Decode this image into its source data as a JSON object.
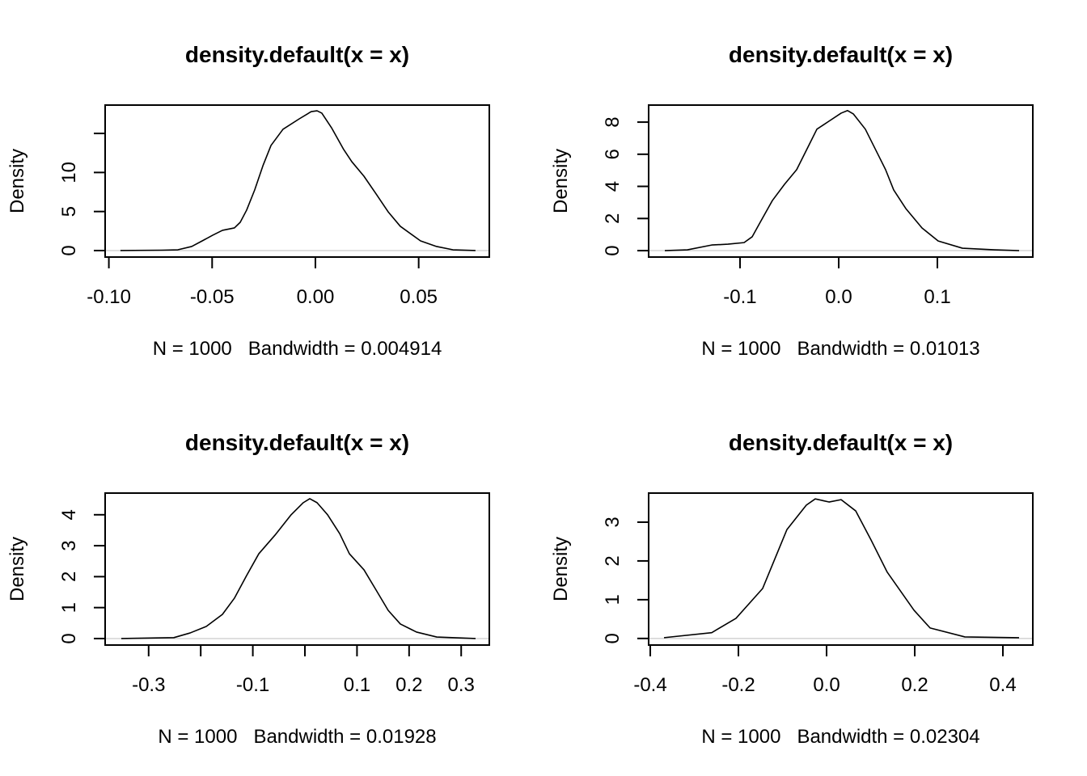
{
  "chart_data": [
    {
      "type": "line",
      "title": "density.default(x = x)",
      "xlabel": "N = 1000   Bandwidth = 0.004914",
      "ylabel": "Density",
      "xlim": [
        -0.1018,
        0.0842
      ],
      "ylim": [
        -0.83,
        18.63
      ],
      "xticks": [
        {
          "v": -0.1,
          "label": "-0.10"
        },
        {
          "v": -0.05,
          "label": "-0.05"
        },
        {
          "v": 0.0,
          "label": "0.00"
        },
        {
          "v": 0.05,
          "label": "0.05"
        }
      ],
      "yticks": [
        {
          "v": 0,
          "label": "0"
        },
        {
          "v": 5,
          "label": "5"
        },
        {
          "v": 10,
          "label": "10"
        },
        {
          "v": 15,
          "label": ""
        }
      ],
      "grid": false,
      "x": [
        -0.0944,
        -0.0744,
        -0.0666,
        -0.0599,
        -0.0548,
        -0.0497,
        -0.045,
        -0.0392,
        -0.0364,
        -0.0333,
        -0.0294,
        -0.0254,
        -0.0215,
        -0.0157,
        -0.0078,
        -0.002,
        0.0008,
        0.0031,
        0.0078,
        0.0137,
        0.0176,
        0.0235,
        0.0294,
        0.0352,
        0.0411,
        0.0509,
        0.0587,
        0.0666,
        0.0775
      ],
      "y": [
        0,
        0.05,
        0.1,
        0.52,
        1.24,
        1.97,
        2.59,
        2.9,
        3.62,
        5.18,
        7.76,
        10.87,
        13.46,
        15.53,
        16.87,
        17.8,
        17.9,
        17.6,
        15.73,
        12.94,
        11.39,
        9.52,
        7.25,
        4.97,
        3.11,
        1.24,
        0.52,
        0.1,
        0
      ]
    },
    {
      "type": "line",
      "title": "density.default(x = x)",
      "xlabel": "N = 1000   Bandwidth = 0.01013",
      "ylabel": "Density",
      "xlim": [
        -0.1926,
        0.1967
      ],
      "ylim": [
        -0.4,
        9.06
      ],
      "xticks": [
        {
          "v": -0.1,
          "label": "-0.1"
        },
        {
          "v": 0.0,
          "label": "0.0"
        },
        {
          "v": 0.1,
          "label": "0.1"
        }
      ],
      "yticks": [
        {
          "v": 0,
          "label": "0"
        },
        {
          "v": 2,
          "label": "2"
        },
        {
          "v": 4,
          "label": "4"
        },
        {
          "v": 6,
          "label": "6"
        },
        {
          "v": 8,
          "label": "8"
        }
      ],
      "grid": false,
      "x": [
        -0.1762,
        -0.1533,
        -0.1287,
        -0.1123,
        -0.0959,
        -0.0877,
        -0.0795,
        -0.0672,
        -0.0549,
        -0.0426,
        -0.0303,
        -0.0221,
        -0.0098,
        0.0025,
        0.009,
        0.0148,
        0.027,
        0.0393,
        0.0475,
        0.0557,
        0.068,
        0.0844,
        0.1008,
        0.1254,
        0.1582,
        0.1828
      ],
      "y": [
        0,
        0.05,
        0.35,
        0.4,
        0.5,
        0.86,
        1.77,
        3.12,
        4.13,
        5.04,
        6.55,
        7.56,
        8.06,
        8.56,
        8.72,
        8.51,
        7.56,
        6.05,
        5.04,
        3.78,
        2.62,
        1.41,
        0.6,
        0.15,
        0.05,
        0
      ]
    },
    {
      "type": "line",
      "title": "density.default(x = x)",
      "xlabel": "N = 1000   Bandwidth = 0.01928",
      "ylabel": "Density",
      "xlim": [
        -0.3835,
        0.354
      ],
      "ylim": [
        -0.21,
        4.7
      ],
      "xticks": [
        {
          "v": -0.3,
          "label": "-0.3"
        },
        {
          "v": -0.2,
          "label": ""
        },
        {
          "v": -0.1,
          "label": "-0.1"
        },
        {
          "v": 0.0,
          "label": ""
        },
        {
          "v": 0.1,
          "label": "0.1"
        },
        {
          "v": 0.2,
          "label": "0.2"
        },
        {
          "v": 0.3,
          "label": "0.3"
        }
      ],
      "yticks": [
        {
          "v": 0,
          "label": "0"
        },
        {
          "v": 1,
          "label": "1"
        },
        {
          "v": 2,
          "label": "2"
        },
        {
          "v": 3,
          "label": "3"
        },
        {
          "v": 4,
          "label": "4"
        }
      ],
      "grid": false,
      "x": [
        -0.3525,
        -0.2516,
        -0.2205,
        -0.1894,
        -0.1584,
        -0.1351,
        -0.1118,
        -0.0885,
        -0.0575,
        -0.0264,
        -0.0031,
        0.0093,
        0.0233,
        0.0435,
        0.0668,
        0.0854,
        0.1134,
        0.1366,
        0.1599,
        0.1832,
        0.2143,
        0.2531,
        0.3276
      ],
      "y": [
        0,
        0.03,
        0.18,
        0.39,
        0.78,
        1.31,
        2.04,
        2.74,
        3.34,
        4.0,
        4.39,
        4.52,
        4.39,
        4.0,
        3.39,
        2.74,
        2.22,
        1.57,
        0.91,
        0.47,
        0.21,
        0.05,
        0
      ]
    },
    {
      "type": "line",
      "title": "density.default(x = x)",
      "xlabel": "N = 1000   Bandwidth = 0.02304",
      "ylabel": "Density",
      "xlim": [
        -0.4037,
        0.4679
      ],
      "ylim": [
        -0.17,
        3.75
      ],
      "xticks": [
        {
          "v": -0.4,
          "label": "-0.4"
        },
        {
          "v": -0.2,
          "label": "-0.2"
        },
        {
          "v": 0.0,
          "label": "0.0"
        },
        {
          "v": 0.2,
          "label": "0.2"
        },
        {
          "v": 0.4,
          "label": "0.4"
        }
      ],
      "yticks": [
        {
          "v": 0,
          "label": "0"
        },
        {
          "v": 1,
          "label": "1"
        },
        {
          "v": 2,
          "label": "2"
        },
        {
          "v": 3,
          "label": "3"
        }
      ],
      "grid": false,
      "x": [
        -0.3688,
        -0.2606,
        -0.2055,
        -0.145,
        -0.0899,
        -0.0459,
        -0.0257,
        0.0055,
        0.033,
        0.0661,
        0.1009,
        0.1376,
        0.1982,
        0.2349,
        0.3138,
        0.4367
      ],
      "y": [
        0.02,
        0.15,
        0.52,
        1.29,
        2.81,
        3.44,
        3.6,
        3.52,
        3.58,
        3.29,
        2.54,
        1.71,
        0.73,
        0.27,
        0.04,
        0.02
      ]
    }
  ]
}
